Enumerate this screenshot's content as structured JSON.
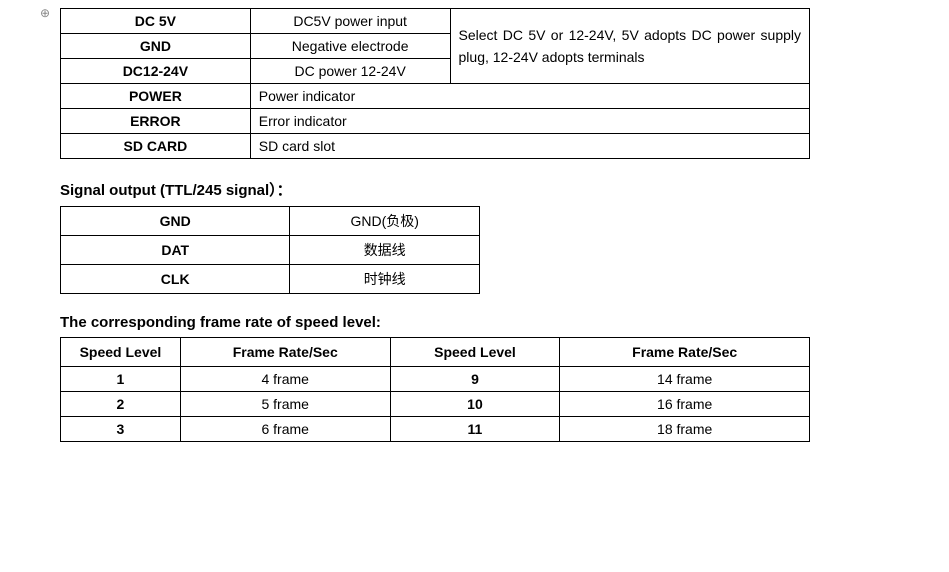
{
  "table1": {
    "rows_top": [
      {
        "label": "DC 5V",
        "desc": "DC5V power input"
      },
      {
        "label": "GND",
        "desc": "Negative electrode"
      },
      {
        "label": "DC12-24V",
        "desc": "DC power 12-24V"
      }
    ],
    "merged_note": "Select DC 5V or 12-24V, 5V adopts DC power supply plug, 12-24V adopts terminals",
    "rows_bottom": [
      {
        "label": "POWER",
        "desc": "Power indicator"
      },
      {
        "label": "ERROR",
        "desc": "Error indicator"
      },
      {
        "label": "SD CARD",
        "desc": "SD card slot"
      }
    ]
  },
  "section2": {
    "title": "Signal output (TTL/245 signal）：",
    "rows": [
      {
        "label": "GND",
        "desc": "GND(负极)"
      },
      {
        "label": "DAT",
        "desc": "数据线"
      },
      {
        "label": "CLK",
        "desc": "时钟线"
      }
    ]
  },
  "section3": {
    "title": "The corresponding frame rate of speed level:",
    "headers": {
      "h1": "Speed Level",
      "h2": "Frame Rate/Sec",
      "h3": "Speed Level",
      "h4": "Frame Rate/Sec"
    },
    "rows": [
      {
        "c1": "1",
        "c2": "4 frame",
        "c3": "9",
        "c4": "14 frame"
      },
      {
        "c1": "2",
        "c2": "5 frame",
        "c3": "10",
        "c4": "16 frame"
      },
      {
        "c1": "3",
        "c2": "6 frame",
        "c3": "11",
        "c4": "18 frame"
      }
    ]
  }
}
